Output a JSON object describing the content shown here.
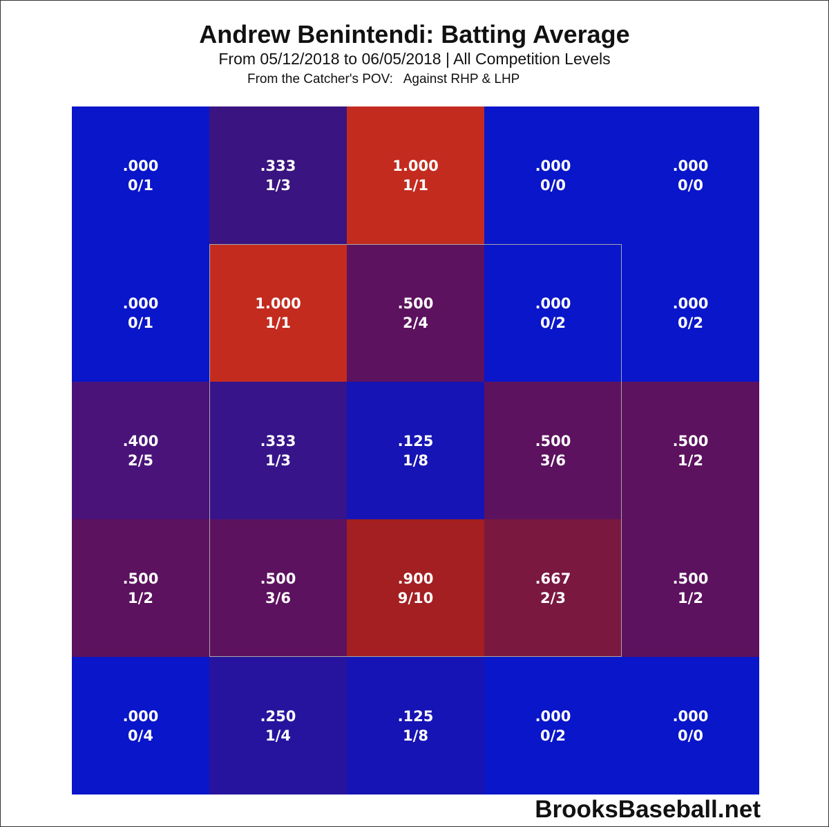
{
  "chart_data": {
    "type": "heatmap",
    "title": "Andrew Benintendi: Batting Average",
    "subtitle": "From 05/12/2018 to 06/05/2018 | All Competition Levels",
    "pov_label": "From the Catcher's POV:",
    "pitcher_hand": "Against RHP & LHP",
    "watermark": "BrooksBaseball.net",
    "rows": 5,
    "cols": 5,
    "strike_zone": {
      "row_start": 1,
      "row_end": 3,
      "col_start": 1,
      "col_end": 3
    },
    "cells": [
      [
        {
          "avg": ".000",
          "fraction": "0/1",
          "color": "#0a16c9"
        },
        {
          "avg": ".333",
          "fraction": "1/3",
          "color": "#3a1480"
        },
        {
          "avg": "1.000",
          "fraction": "1/1",
          "color": "#c42b1f"
        },
        {
          "avg": ".000",
          "fraction": "0/0",
          "color": "#0a16c9"
        },
        {
          "avg": ".000",
          "fraction": "0/0",
          "color": "#0a16c9"
        }
      ],
      [
        {
          "avg": ".000",
          "fraction": "0/1",
          "color": "#0a16c9"
        },
        {
          "avg": "1.000",
          "fraction": "1/1",
          "color": "#c42b1f"
        },
        {
          "avg": ".500",
          "fraction": "2/4",
          "color": "#5c125e"
        },
        {
          "avg": ".000",
          "fraction": "0/2",
          "color": "#0a16c9"
        },
        {
          "avg": ".000",
          "fraction": "0/2",
          "color": "#0a16c9"
        }
      ],
      [
        {
          "avg": ".400",
          "fraction": "2/5",
          "color": "#4a137a"
        },
        {
          "avg": ".333",
          "fraction": "1/3",
          "color": "#37148a"
        },
        {
          "avg": ".125",
          "fraction": "1/8",
          "color": "#1614b4"
        },
        {
          "avg": ".500",
          "fraction": "3/6",
          "color": "#5c125e"
        },
        {
          "avg": ".500",
          "fraction": "1/2",
          "color": "#5c125e"
        }
      ],
      [
        {
          "avg": ".500",
          "fraction": "1/2",
          "color": "#5c125e"
        },
        {
          "avg": ".500",
          "fraction": "3/6",
          "color": "#5c125e"
        },
        {
          "avg": ".900",
          "fraction": "9/10",
          "color": "#a31f22"
        },
        {
          "avg": ".667",
          "fraction": "2/3",
          "color": "#7a1840"
        },
        {
          "avg": ".500",
          "fraction": "1/2",
          "color": "#5c125e"
        }
      ],
      [
        {
          "avg": ".000",
          "fraction": "0/4",
          "color": "#0a16c9"
        },
        {
          "avg": ".250",
          "fraction": "1/4",
          "color": "#27149e"
        },
        {
          "avg": ".125",
          "fraction": "1/8",
          "color": "#1614b4"
        },
        {
          "avg": ".000",
          "fraction": "0/2",
          "color": "#0a16c9"
        },
        {
          "avg": ".000",
          "fraction": "0/0",
          "color": "#0a16c9"
        }
      ]
    ]
  }
}
